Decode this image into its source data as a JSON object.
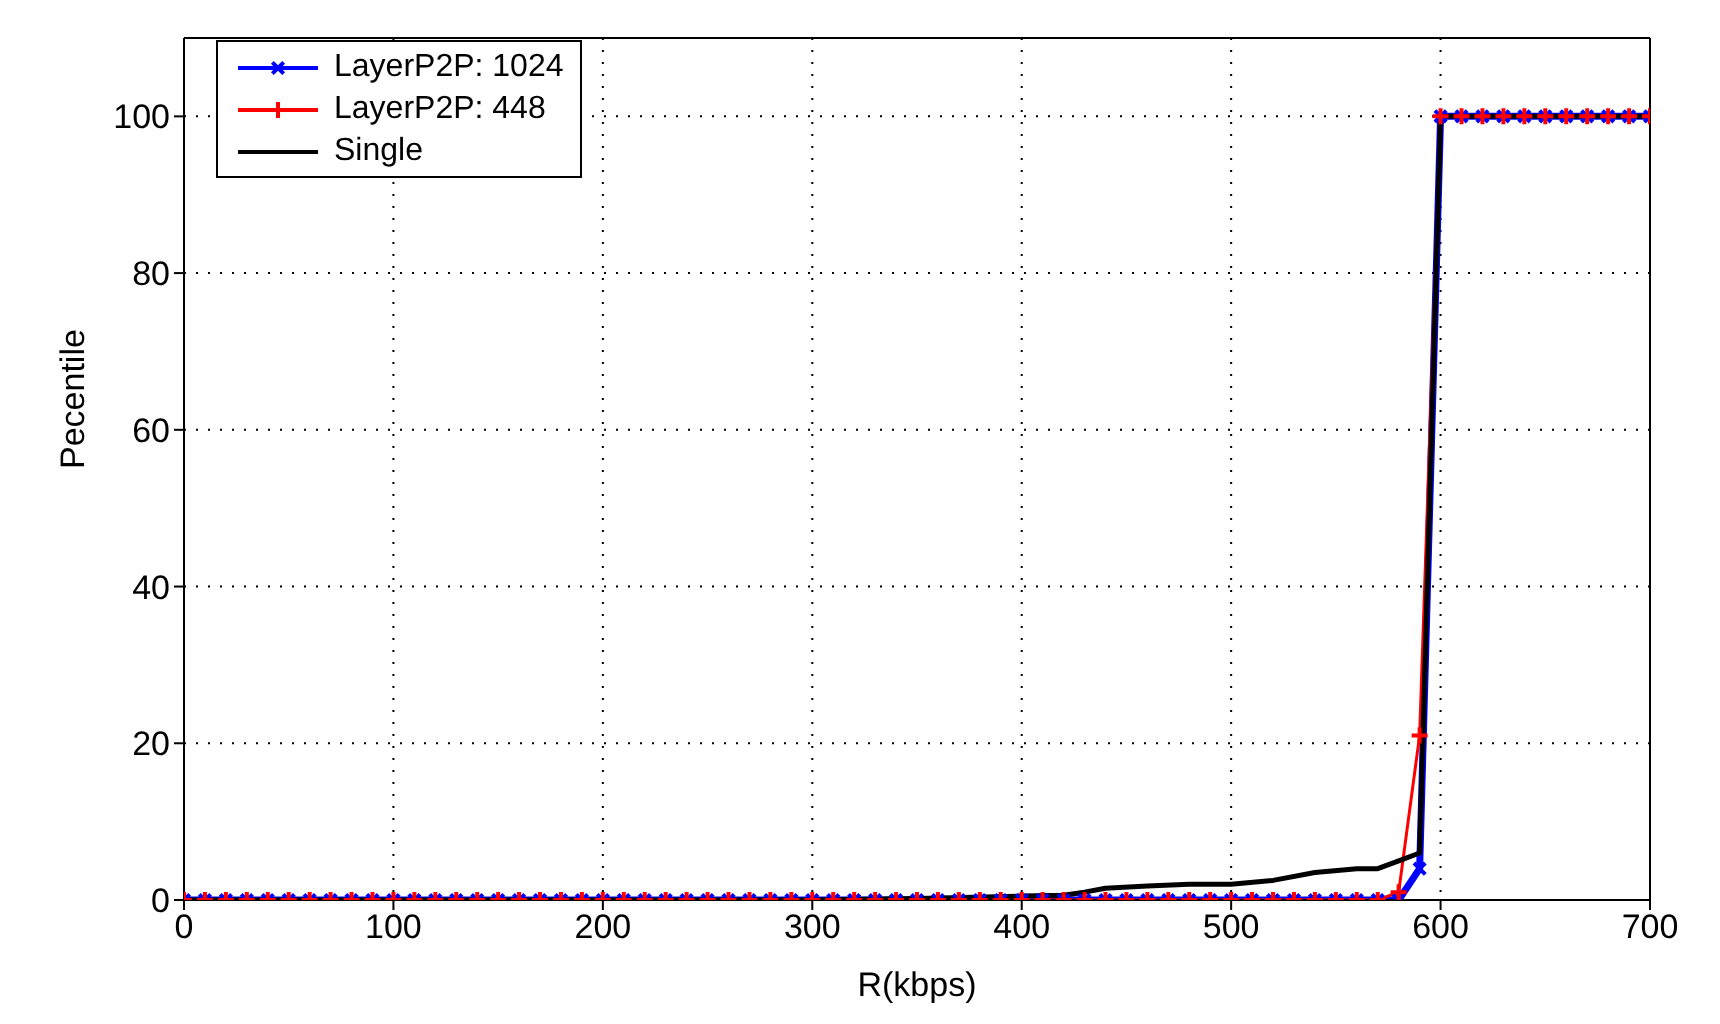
{
  "chart_data": {
    "type": "line",
    "xlabel": "R(kbps)",
    "ylabel": "Pecentile",
    "xlim": [
      0,
      700
    ],
    "xticks": [
      0,
      100,
      200,
      300,
      400,
      500,
      600,
      700
    ],
    "ylim": [
      0,
      110
    ],
    "yticks": [
      0,
      20,
      40,
      60,
      80,
      100
    ],
    "grid": true,
    "legend": "top left",
    "series": [
      {
        "name": "LayerP2P: 1024",
        "color": "#0000ff",
        "marker": "cross",
        "x": [
          0,
          10,
          20,
          30,
          40,
          50,
          60,
          70,
          80,
          90,
          100,
          110,
          120,
          130,
          140,
          150,
          160,
          170,
          180,
          190,
          200,
          210,
          220,
          230,
          240,
          250,
          260,
          270,
          280,
          290,
          300,
          310,
          320,
          330,
          340,
          350,
          360,
          370,
          380,
          390,
          400,
          410,
          420,
          430,
          440,
          450,
          460,
          470,
          480,
          490,
          500,
          510,
          520,
          530,
          540,
          550,
          560,
          570,
          580,
          590,
          600,
          610,
          620,
          630,
          640,
          650,
          660,
          670,
          680,
          690,
          700
        ],
        "values": [
          0,
          0,
          0,
          0,
          0,
          0,
          0,
          0,
          0,
          0,
          0,
          0,
          0,
          0,
          0,
          0,
          0,
          0,
          0,
          0,
          0,
          0,
          0,
          0,
          0,
          0,
          0,
          0,
          0,
          0,
          0,
          0,
          0,
          0,
          0,
          0,
          0,
          0,
          0,
          0,
          0,
          0,
          0,
          0,
          0,
          0,
          0,
          0,
          0,
          0,
          0,
          0,
          0,
          0,
          0,
          0,
          0,
          0,
          0,
          4,
          100,
          100,
          100,
          100,
          100,
          100,
          100,
          100,
          100,
          100,
          100
        ]
      },
      {
        "name": "LayerP2P: 448",
        "color": "#ff0000",
        "marker": "cross",
        "x": [
          0,
          10,
          20,
          30,
          40,
          50,
          60,
          70,
          80,
          90,
          100,
          110,
          120,
          130,
          140,
          150,
          160,
          170,
          180,
          190,
          200,
          210,
          220,
          230,
          240,
          250,
          260,
          270,
          280,
          290,
          300,
          310,
          320,
          330,
          340,
          350,
          360,
          370,
          380,
          390,
          400,
          410,
          420,
          430,
          440,
          450,
          460,
          470,
          480,
          490,
          500,
          510,
          520,
          530,
          540,
          550,
          560,
          570,
          580,
          590,
          600,
          610,
          620,
          630,
          640,
          650,
          660,
          670,
          680,
          690,
          700
        ],
        "values": [
          0,
          0,
          0,
          0,
          0,
          0,
          0,
          0,
          0,
          0,
          0,
          0,
          0,
          0,
          0,
          0,
          0,
          0,
          0,
          0,
          0,
          0,
          0,
          0,
          0,
          0,
          0,
          0,
          0,
          0,
          0,
          0,
          0,
          0,
          0,
          0,
          0,
          0,
          0,
          0,
          0,
          0,
          0,
          0,
          0,
          0,
          0,
          0,
          0,
          0,
          0,
          0,
          0,
          0,
          0,
          0,
          0,
          0,
          1,
          21,
          100,
          100,
          100,
          100,
          100,
          100,
          100,
          100,
          100,
          100,
          100
        ]
      },
      {
        "name": "Single",
        "color": "#000000",
        "marker": "none",
        "x": [
          0,
          100,
          200,
          300,
          350,
          400,
          420,
          430,
          440,
          460,
          480,
          500,
          520,
          540,
          560,
          570,
          580,
          590,
          600,
          700
        ],
        "values": [
          0,
          0,
          0,
          0,
          0.2,
          0.5,
          0.6,
          1,
          1.5,
          1.8,
          2,
          2,
          2.5,
          3.5,
          4,
          4,
          5,
          6,
          100,
          100
        ]
      }
    ]
  }
}
